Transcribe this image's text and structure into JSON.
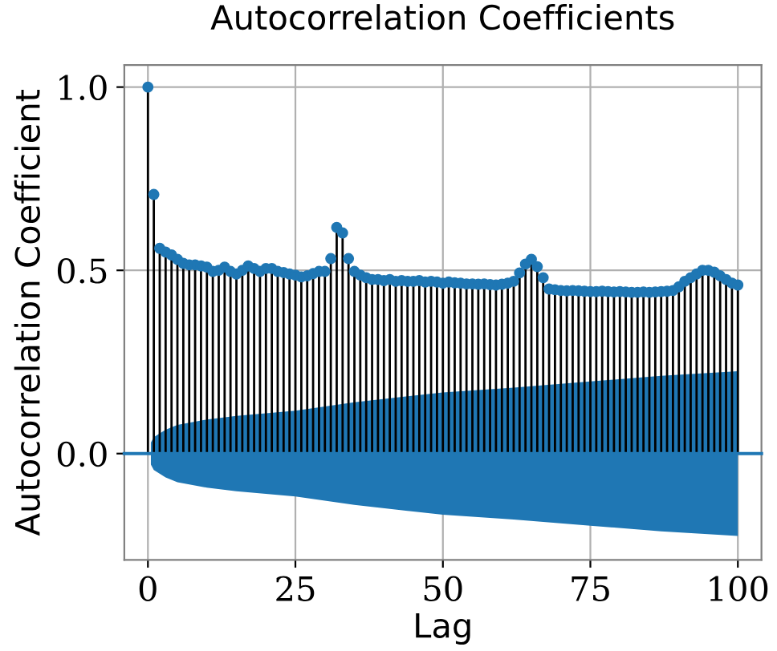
{
  "chart_data": {
    "type": "lollipop",
    "title": "Autocorrelation Coefficients",
    "xlabel": "Lag",
    "ylabel": "Autocorrelation Coefficient",
    "xlim": [
      -4,
      104
    ],
    "ylim": [
      -0.29,
      1.06
    ],
    "xticks": [
      0,
      25,
      50,
      75,
      100
    ],
    "yticks": [
      {
        "value": 0,
        "label": "0.0"
      },
      0.5,
      {
        "value": 1,
        "label": "1.0"
      }
    ],
    "grid": true,
    "marker": "circle",
    "series": [
      {
        "color": "#1f77b4",
        "x": [
          0,
          1,
          2,
          3,
          4,
          5,
          6,
          7,
          8,
          9,
          10,
          11,
          12,
          13,
          14,
          15,
          16,
          17,
          18,
          19,
          20,
          21,
          22,
          23,
          24,
          25,
          26,
          27,
          28,
          29,
          30,
          31,
          32,
          33,
          34,
          35,
          36,
          37,
          38,
          39,
          40,
          41,
          42,
          43,
          44,
          45,
          46,
          47,
          48,
          49,
          50,
          51,
          52,
          53,
          54,
          55,
          56,
          57,
          58,
          59,
          60,
          61,
          62,
          63,
          64,
          65,
          66,
          67,
          68,
          69,
          70,
          71,
          72,
          73,
          74,
          75,
          76,
          77,
          78,
          79,
          80,
          81,
          82,
          83,
          84,
          85,
          86,
          87,
          88,
          89,
          90,
          91,
          92,
          93,
          94,
          95,
          96,
          97,
          98,
          99,
          100
        ],
        "values": [
          1.0,
          0.707,
          0.56,
          0.55,
          0.542,
          0.53,
          0.519,
          0.515,
          0.515,
          0.512,
          0.509,
          0.497,
          0.5,
          0.509,
          0.497,
          0.49,
          0.5,
          0.512,
          0.505,
          0.497,
          0.505,
          0.505,
          0.497,
          0.494,
          0.49,
          0.487,
          0.482,
          0.485,
          0.491,
          0.497,
          0.497,
          0.532,
          0.617,
          0.602,
          0.532,
          0.497,
          0.487,
          0.48,
          0.475,
          0.475,
          0.472,
          0.475,
          0.47,
          0.472,
          0.47,
          0.47,
          0.472,
          0.468,
          0.47,
          0.468,
          0.465,
          0.468,
          0.466,
          0.465,
          0.463,
          0.463,
          0.462,
          0.463,
          0.461,
          0.46,
          0.462,
          0.465,
          0.47,
          0.493,
          0.517,
          0.53,
          0.51,
          0.48,
          0.449,
          0.447,
          0.445,
          0.444,
          0.445,
          0.444,
          0.443,
          0.442,
          0.442,
          0.443,
          0.442,
          0.441,
          0.442,
          0.441,
          0.44,
          0.44,
          0.441,
          0.44,
          0.441,
          0.442,
          0.443,
          0.445,
          0.455,
          0.47,
          0.48,
          0.49,
          0.5,
          0.5,
          0.495,
          0.485,
          0.475,
          0.465,
          0.46
        ]
      },
      {
        "type": "line",
        "marker": "none",
        "color": "#1f77b4",
        "x": [
          -4,
          0.5,
          1,
          3,
          5,
          10,
          15,
          25,
          35,
          50,
          62,
          75,
          87,
          100,
          104
        ],
        "values": [
          0,
          0,
          0,
          0,
          0,
          0,
          0,
          0,
          0,
          0,
          0,
          0,
          0,
          0,
          0
        ],
        "lower": [
          null,
          -0.03,
          -0.045,
          -0.065,
          -0.078,
          -0.093,
          -0.103,
          -0.117,
          -0.14,
          -0.167,
          -0.18,
          -0.197,
          -0.212,
          -0.225,
          null
        ],
        "upper": [
          null,
          0.03,
          0.045,
          0.065,
          0.078,
          0.093,
          0.103,
          0.117,
          0.14,
          0.167,
          0.18,
          0.197,
          0.212,
          0.225,
          null
        ]
      }
    ]
  }
}
